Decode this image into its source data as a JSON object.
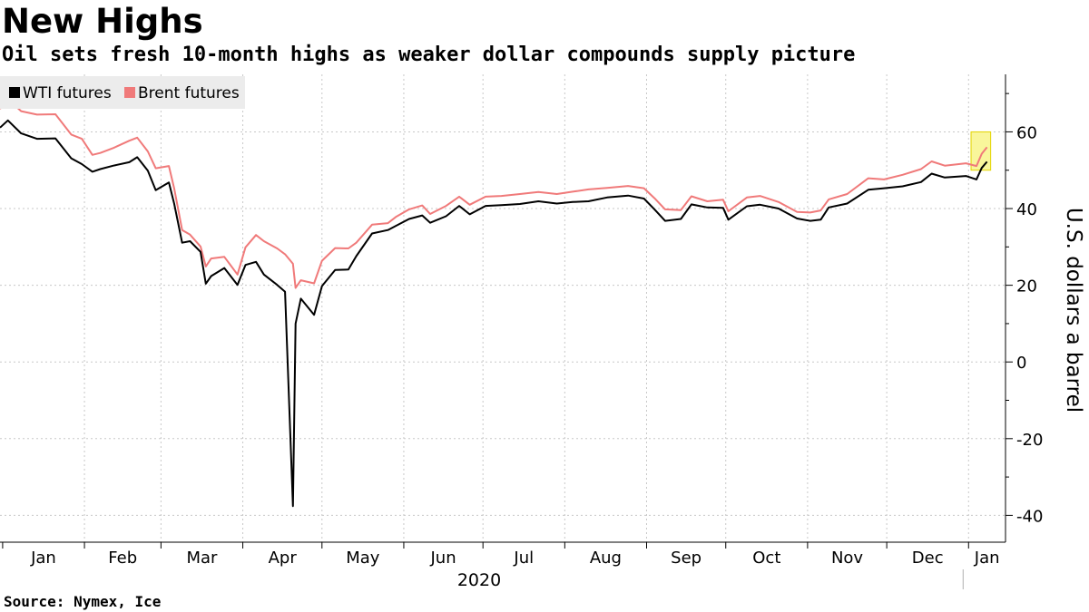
{
  "header": {
    "title": "New Highs",
    "subtitle": "Oil sets fresh 10-month highs as weaker dollar compounds supply picture"
  },
  "footer": {
    "source": "Source: Nymex, Ice"
  },
  "chart_data": {
    "type": "line",
    "ylabel": "U.S. dollars a barrel",
    "xlabel": "",
    "ylim": [
      -47,
      75
    ],
    "yticks": [
      -40,
      -20,
      0,
      20,
      40,
      60
    ],
    "x_range": [
      "2019-12-31",
      "2021-01-15"
    ],
    "month_labels": [
      "Jan",
      "Feb",
      "Mar",
      "Apr",
      "May",
      "Jun",
      "Jul",
      "Aug",
      "Sep",
      "Oct",
      "Nov",
      "Dec",
      "Jan"
    ],
    "year_label": "2020",
    "grid": true,
    "legend_placement": "top-left",
    "highlight": {
      "from": "2021-01-04",
      "to": "2021-01-08",
      "color": "#f7f37a"
    },
    "series": [
      {
        "name": "WTI futures",
        "color": "#000000",
        "points": [
          [
            "2019-12-31",
            61.1
          ],
          [
            "2020-01-03",
            63.0
          ],
          [
            "2020-01-08",
            59.6
          ],
          [
            "2020-01-14",
            58.2
          ],
          [
            "2020-01-21",
            58.3
          ],
          [
            "2020-01-27",
            53.1
          ],
          [
            "2020-01-31",
            51.6
          ],
          [
            "2020-02-04",
            49.6
          ],
          [
            "2020-02-07",
            50.3
          ],
          [
            "2020-02-12",
            51.2
          ],
          [
            "2020-02-18",
            52.1
          ],
          [
            "2020-02-21",
            53.4
          ],
          [
            "2020-02-25",
            49.9
          ],
          [
            "2020-02-28",
            44.8
          ],
          [
            "2020-03-04",
            46.8
          ],
          [
            "2020-03-06",
            41.3
          ],
          [
            "2020-03-09",
            31.1
          ],
          [
            "2020-03-12",
            31.5
          ],
          [
            "2020-03-16",
            28.7
          ],
          [
            "2020-03-18",
            20.4
          ],
          [
            "2020-03-20",
            22.4
          ],
          [
            "2020-03-25",
            24.5
          ],
          [
            "2020-03-30",
            20.1
          ],
          [
            "2020-04-02",
            25.3
          ],
          [
            "2020-04-06",
            26.1
          ],
          [
            "2020-04-09",
            22.8
          ],
          [
            "2020-04-14",
            20.1
          ],
          [
            "2020-04-17",
            18.3
          ],
          [
            "2020-04-20",
            -37.6
          ],
          [
            "2020-04-21",
            10.0
          ],
          [
            "2020-04-23",
            16.5
          ],
          [
            "2020-04-28",
            12.3
          ],
          [
            "2020-05-01",
            19.8
          ],
          [
            "2020-05-06",
            23.99
          ],
          [
            "2020-05-11",
            24.1
          ],
          [
            "2020-05-14",
            27.6
          ],
          [
            "2020-05-20",
            33.5
          ],
          [
            "2020-05-26",
            34.4
          ],
          [
            "2020-05-29",
            35.5
          ],
          [
            "2020-06-03",
            37.3
          ],
          [
            "2020-06-08",
            38.2
          ],
          [
            "2020-06-11",
            36.3
          ],
          [
            "2020-06-17",
            38.0
          ],
          [
            "2020-06-22",
            40.7
          ],
          [
            "2020-06-26",
            38.5
          ],
          [
            "2020-07-02",
            40.7
          ],
          [
            "2020-07-08",
            40.9
          ],
          [
            "2020-07-15",
            41.2
          ],
          [
            "2020-07-22",
            41.9
          ],
          [
            "2020-07-29",
            41.3
          ],
          [
            "2020-08-04",
            41.7
          ],
          [
            "2020-08-10",
            41.9
          ],
          [
            "2020-08-17",
            42.9
          ],
          [
            "2020-08-25",
            43.4
          ],
          [
            "2020-08-31",
            42.6
          ],
          [
            "2020-09-04",
            39.8
          ],
          [
            "2020-09-08",
            36.8
          ],
          [
            "2020-09-14",
            37.3
          ],
          [
            "2020-09-18",
            41.1
          ],
          [
            "2020-09-24",
            40.3
          ],
          [
            "2020-09-30",
            40.2
          ],
          [
            "2020-10-02",
            37.1
          ],
          [
            "2020-10-09",
            40.6
          ],
          [
            "2020-10-14",
            41.0
          ],
          [
            "2020-10-21",
            40.0
          ],
          [
            "2020-10-28",
            37.4
          ],
          [
            "2020-11-02",
            36.8
          ],
          [
            "2020-11-06",
            37.1
          ],
          [
            "2020-11-09",
            40.3
          ],
          [
            "2020-11-16",
            41.3
          ],
          [
            "2020-11-24",
            44.9
          ],
          [
            "2020-11-30",
            45.3
          ],
          [
            "2020-12-07",
            45.8
          ],
          [
            "2020-12-14",
            46.9
          ],
          [
            "2020-12-18",
            49.1
          ],
          [
            "2020-12-23",
            48.1
          ],
          [
            "2020-12-31",
            48.5
          ],
          [
            "2021-01-04",
            47.6
          ],
          [
            "2021-01-06",
            50.6
          ],
          [
            "2021-01-08",
            52.2
          ]
        ]
      },
      {
        "name": "Brent futures",
        "color": "#f07a7a",
        "points": [
          [
            "2019-12-31",
            66.0
          ],
          [
            "2020-01-03",
            68.6
          ],
          [
            "2020-01-08",
            65.4
          ],
          [
            "2020-01-14",
            64.5
          ],
          [
            "2020-01-21",
            64.6
          ],
          [
            "2020-01-27",
            59.3
          ],
          [
            "2020-01-31",
            58.2
          ],
          [
            "2020-02-04",
            54.0
          ],
          [
            "2020-02-07",
            54.5
          ],
          [
            "2020-02-12",
            55.8
          ],
          [
            "2020-02-18",
            57.7
          ],
          [
            "2020-02-21",
            58.5
          ],
          [
            "2020-02-25",
            54.9
          ],
          [
            "2020-02-28",
            50.5
          ],
          [
            "2020-03-04",
            51.1
          ],
          [
            "2020-03-06",
            45.3
          ],
          [
            "2020-03-09",
            34.4
          ],
          [
            "2020-03-12",
            33.2
          ],
          [
            "2020-03-16",
            30.1
          ],
          [
            "2020-03-18",
            24.9
          ],
          [
            "2020-03-20",
            26.98
          ],
          [
            "2020-03-25",
            27.4
          ],
          [
            "2020-03-30",
            22.8
          ],
          [
            "2020-04-02",
            29.9
          ],
          [
            "2020-04-06",
            33.1
          ],
          [
            "2020-04-09",
            31.5
          ],
          [
            "2020-04-14",
            29.6
          ],
          [
            "2020-04-17",
            28.1
          ],
          [
            "2020-04-20",
            25.6
          ],
          [
            "2020-04-21",
            19.3
          ],
          [
            "2020-04-23",
            21.3
          ],
          [
            "2020-04-28",
            20.5
          ],
          [
            "2020-05-01",
            26.4
          ],
          [
            "2020-05-06",
            29.7
          ],
          [
            "2020-05-11",
            29.6
          ],
          [
            "2020-05-14",
            31.1
          ],
          [
            "2020-05-20",
            35.8
          ],
          [
            "2020-05-26",
            36.2
          ],
          [
            "2020-05-29",
            37.8
          ],
          [
            "2020-06-03",
            39.8
          ],
          [
            "2020-06-08",
            40.8
          ],
          [
            "2020-06-11",
            38.6
          ],
          [
            "2020-06-17",
            40.7
          ],
          [
            "2020-06-22",
            43.1
          ],
          [
            "2020-06-26",
            41.0
          ],
          [
            "2020-07-02",
            43.1
          ],
          [
            "2020-07-08",
            43.3
          ],
          [
            "2020-07-15",
            43.8
          ],
          [
            "2020-07-22",
            44.3
          ],
          [
            "2020-07-29",
            43.8
          ],
          [
            "2020-08-04",
            44.4
          ],
          [
            "2020-08-10",
            44.99
          ],
          [
            "2020-08-17",
            45.4
          ],
          [
            "2020-08-25",
            45.9
          ],
          [
            "2020-08-31",
            45.3
          ],
          [
            "2020-09-04",
            42.7
          ],
          [
            "2020-09-08",
            39.8
          ],
          [
            "2020-09-14",
            39.6
          ],
          [
            "2020-09-18",
            43.2
          ],
          [
            "2020-09-24",
            41.9
          ],
          [
            "2020-09-30",
            42.3
          ],
          [
            "2020-10-02",
            39.3
          ],
          [
            "2020-10-09",
            42.9
          ],
          [
            "2020-10-14",
            43.3
          ],
          [
            "2020-10-21",
            41.7
          ],
          [
            "2020-10-28",
            39.1
          ],
          [
            "2020-11-02",
            38.97
          ],
          [
            "2020-11-06",
            39.5
          ],
          [
            "2020-11-09",
            42.4
          ],
          [
            "2020-11-16",
            43.8
          ],
          [
            "2020-11-24",
            47.9
          ],
          [
            "2020-11-30",
            47.6
          ],
          [
            "2020-12-07",
            48.8
          ],
          [
            "2020-12-14",
            50.3
          ],
          [
            "2020-12-18",
            52.3
          ],
          [
            "2020-12-23",
            51.2
          ],
          [
            "2020-12-31",
            51.8
          ],
          [
            "2021-01-04",
            51.1
          ],
          [
            "2021-01-06",
            54.3
          ],
          [
            "2021-01-08",
            55.99
          ]
        ]
      }
    ]
  }
}
